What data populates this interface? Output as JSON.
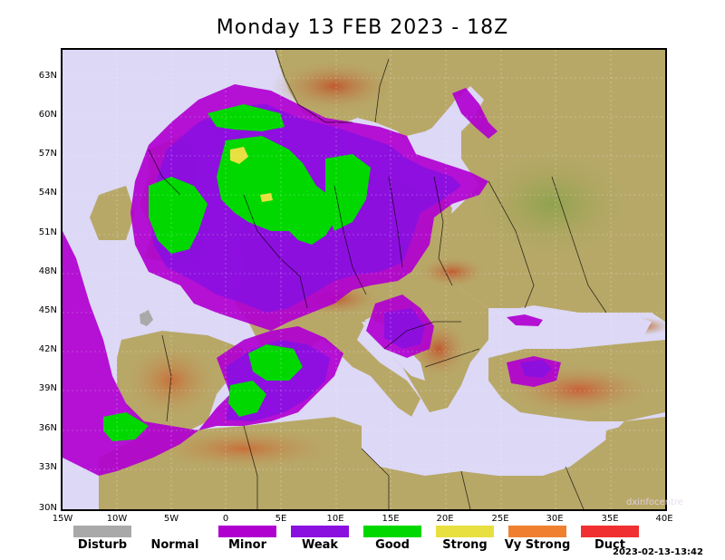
{
  "title": "Monday 13 FEB 2023 - 18Z",
  "y_ticks": [
    "63N",
    "60N",
    "57N",
    "54N",
    "51N",
    "48N",
    "45N",
    "42N",
    "39N",
    "36N",
    "33N",
    "30N"
  ],
  "x_ticks": [
    "15W",
    "10W",
    "5W",
    "0",
    "5E",
    "10E",
    "15E",
    "20E",
    "25E",
    "30E",
    "35E",
    "40E"
  ],
  "legend": [
    {
      "label": "Disturb",
      "color": "#a9a9a9"
    },
    {
      "label": "Normal",
      "color": ""
    },
    {
      "label": "Minor",
      "color": "#b000d0"
    },
    {
      "label": "Weak",
      "color": "#8a10e0"
    },
    {
      "label": "Good",
      "color": "#00d800"
    },
    {
      "label": "Strong",
      "color": "#e8e040"
    },
    {
      "label": "Vy Strong",
      "color": "#f08030"
    },
    {
      "label": "Duct",
      "color": "#f03030"
    }
  ],
  "colors": {
    "sea": "#dcd8f6",
    "land": "#b8a868",
    "land_high": "#c06a3a",
    "land_low": "#8a9a50"
  },
  "watermark": "dxinfocentre",
  "timestamp": "2023-02-13-13:42"
}
